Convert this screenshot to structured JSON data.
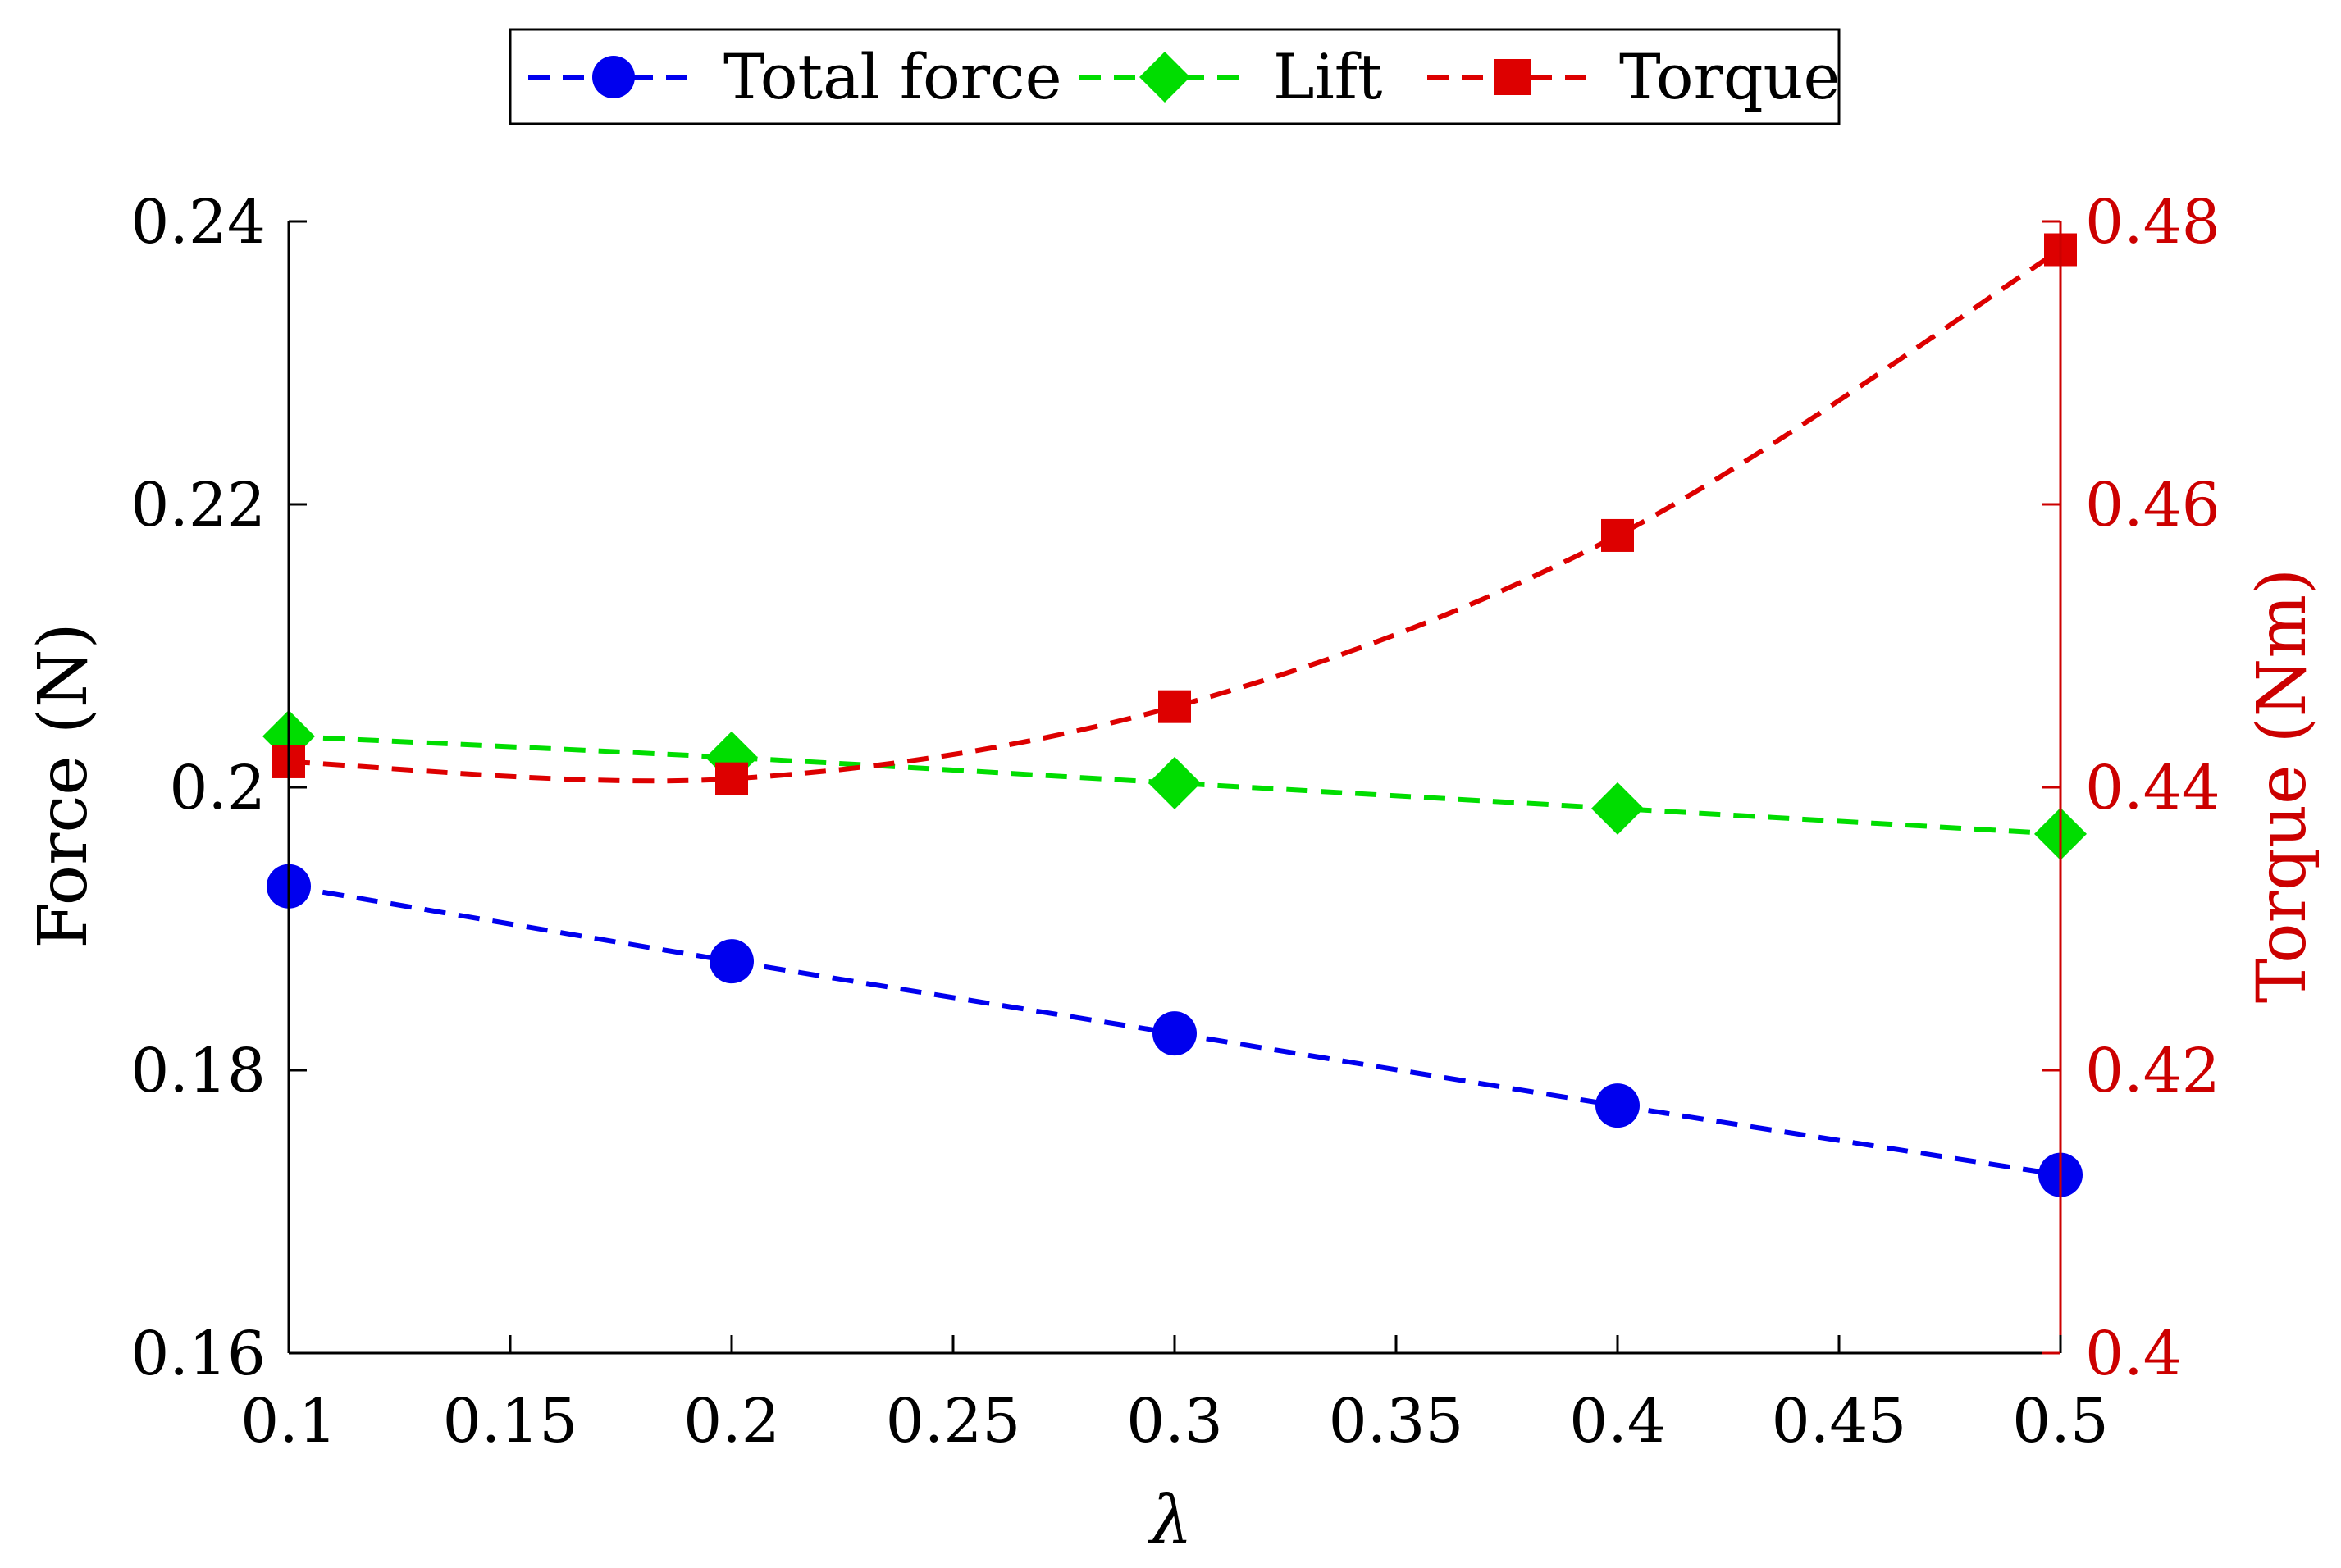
{
  "chart_data": {
    "type": "line",
    "title": "",
    "xlabel": "λ",
    "ylabel_left": "Force (N)",
    "ylabel_right": "Torque (Nm)",
    "x": [
      0.1,
      0.2,
      0.3,
      0.4,
      0.5
    ],
    "xlim": [
      0.1,
      0.5
    ],
    "xticks": [
      "0.1",
      "0.15",
      "0.2",
      "0.25",
      "0.3",
      "0.35",
      "0.4",
      "0.45",
      "0.5"
    ],
    "ylim_left": [
      0.16,
      0.24
    ],
    "yticks_left": [
      "0.16",
      "0.18",
      "0.2",
      "0.22",
      "0.24"
    ],
    "ylim_right": [
      0.4,
      0.48
    ],
    "yticks_right": [
      "0.4",
      "0.42",
      "0.44",
      "0.46",
      "0.48"
    ],
    "grid": false,
    "legend_position": "top-center",
    "series": [
      {
        "name": "Total force",
        "axis": "left",
        "marker": "circle",
        "line": "dashed",
        "color": "#0000ee",
        "values": [
          0.193,
          0.1877,
          0.1826,
          0.1775,
          0.1726
        ]
      },
      {
        "name": "Lift",
        "axis": "left",
        "marker": "diamond",
        "line": "dashed",
        "color": "#00dd00",
        "values": [
          0.2036,
          0.2021,
          0.2003,
          0.1985,
          0.1967
        ]
      },
      {
        "name": "Torque",
        "axis": "right",
        "marker": "square",
        "line": "dashed",
        "color": "#dd0000",
        "values": [
          0.4418,
          0.4406,
          0.4457,
          0.4578,
          0.478
        ]
      }
    ],
    "colors": {
      "axis_left": "#000000",
      "axis_right": "#cc0000",
      "background": "#ffffff"
    }
  }
}
